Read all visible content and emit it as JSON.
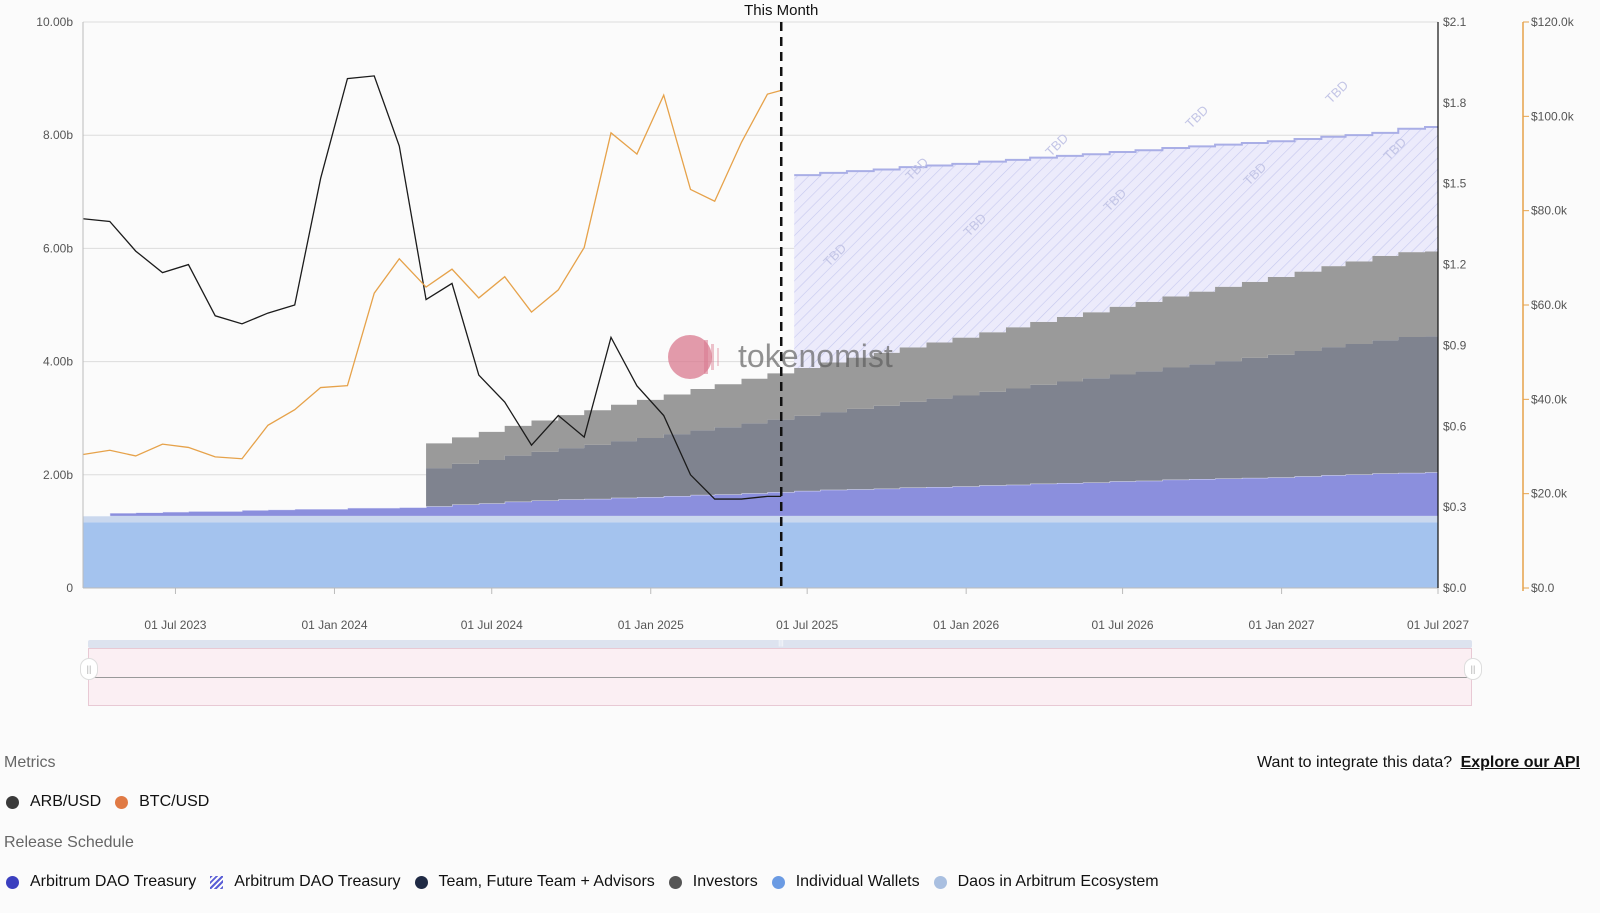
{
  "chart_data": {
    "type": "area",
    "annotation": "This Month",
    "today": "2025-06-01",
    "watermark": "tokenomist",
    "tbd_label": "TBD",
    "x_ticks": [
      "01 Jul 2023",
      "01 Jan 2024",
      "01 Jul 2024",
      "01 Jan 2025",
      "01 Jul 2025",
      "01 Jan 2026",
      "01 Jul 2026",
      "01 Jan 2027",
      "01 Jul 2027"
    ],
    "y_left": {
      "ticks": [
        "0",
        "2.00b",
        "4.00b",
        "6.00b",
        "8.00b",
        "10.00b"
      ],
      "ylim": [
        0,
        10000000000
      ]
    },
    "y_right_price": {
      "ticks": [
        "$0.0",
        "$0.3",
        "$0.6",
        "$0.9",
        "$1.2",
        "$1.5",
        "$1.8",
        "$2.1"
      ],
      "ylim": [
        0,
        2.1
      ]
    },
    "y_right_btc": {
      "ticks": [
        "$0.0",
        "$20.0k",
        "$40.0k",
        "$60.0k",
        "$80.0k",
        "$100.0k",
        "$120.0k"
      ],
      "ylim": [
        0,
        120000
      ]
    },
    "xlim": [
      "2023-03-16",
      "2027-07-01"
    ],
    "colors": {
      "arb": "#1b1b1b",
      "btc": "#e6a24a",
      "dao": "#8b8fdd",
      "dao_tbd": "#ecebfb",
      "dao_tbd_stroke": "#a9aee6",
      "team": "#7f838f",
      "investors": "#9a9a9a",
      "individual": "#a4c3ee",
      "daos_ecosystem": "#cad8ee",
      "today_line": "#111111"
    },
    "release_schedule": {
      "dates": [
        "2023-03-16",
        "2023-04-16",
        "2023-05-16",
        "2023-06-16",
        "2023-07-16",
        "2023-08-16",
        "2023-09-16",
        "2023-10-16",
        "2023-11-16",
        "2023-12-16",
        "2024-01-16",
        "2024-02-16",
        "2024-03-16",
        "2024-04-16",
        "2024-05-16",
        "2024-06-16",
        "2024-07-16",
        "2024-08-16",
        "2024-09-16",
        "2024-10-16",
        "2024-11-16",
        "2024-12-16",
        "2025-01-16",
        "2025-02-16",
        "2025-03-16",
        "2025-04-16",
        "2025-05-16",
        "2025-06-16",
        "2025-07-16",
        "2025-08-16",
        "2025-09-16",
        "2025-10-16",
        "2025-11-16",
        "2025-12-16",
        "2026-01-16",
        "2026-02-16",
        "2026-03-16",
        "2026-04-16",
        "2026-05-16",
        "2026-06-16",
        "2026-07-16",
        "2026-08-16",
        "2026-09-16",
        "2026-10-16",
        "2026-11-16",
        "2026-12-16",
        "2027-01-16",
        "2027-02-16",
        "2027-03-16",
        "2027-04-16",
        "2027-05-16",
        "2027-06-16",
        "2027-07-01"
      ],
      "series": [
        {
          "name": "Individual Wallets",
          "values": [
            1.162,
            1.162,
            1.162,
            1.162,
            1.162,
            1.162,
            1.162,
            1.162,
            1.162,
            1.162,
            1.162,
            1.162,
            1.162,
            1.162,
            1.162,
            1.162,
            1.162,
            1.162,
            1.162,
            1.162,
            1.162,
            1.162,
            1.162,
            1.162,
            1.162,
            1.162,
            1.162,
            1.162,
            1.162,
            1.162,
            1.162,
            1.162,
            1.162,
            1.162,
            1.162,
            1.162,
            1.162,
            1.162,
            1.162,
            1.162,
            1.162,
            1.162,
            1.162,
            1.162,
            1.162,
            1.162,
            1.162,
            1.162,
            1.162,
            1.162,
            1.162,
            1.162,
            1.162
          ]
        },
        {
          "name": "Daos in Arbitrum Ecosystem",
          "values": [
            0.113,
            0.113,
            0.113,
            0.113,
            0.113,
            0.113,
            0.113,
            0.113,
            0.113,
            0.113,
            0.113,
            0.113,
            0.113,
            0.113,
            0.113,
            0.113,
            0.113,
            0.113,
            0.113,
            0.113,
            0.113,
            0.113,
            0.113,
            0.113,
            0.113,
            0.113,
            0.113,
            0.113,
            0.113,
            0.113,
            0.113,
            0.113,
            0.113,
            0.113,
            0.113,
            0.113,
            0.113,
            0.113,
            0.113,
            0.113,
            0.113,
            0.113,
            0.113,
            0.113,
            0.113,
            0.113,
            0.113,
            0.113,
            0.113,
            0.113,
            0.113,
            0.113,
            0.113
          ]
        },
        {
          "name": "Arbitrum DAO Treasury",
          "values": [
            0,
            0.05,
            0.06,
            0.07,
            0.08,
            0.08,
            0.1,
            0.11,
            0.12,
            0.12,
            0.14,
            0.14,
            0.15,
            0.17,
            0.2,
            0.22,
            0.25,
            0.27,
            0.29,
            0.3,
            0.32,
            0.33,
            0.35,
            0.37,
            0.38,
            0.4,
            0.42,
            0.44,
            0.46,
            0.47,
            0.48,
            0.5,
            0.51,
            0.52,
            0.54,
            0.55,
            0.57,
            0.58,
            0.59,
            0.61,
            0.62,
            0.64,
            0.65,
            0.66,
            0.67,
            0.68,
            0.7,
            0.72,
            0.73,
            0.75,
            0.76,
            0.77,
            0.77
          ]
        },
        {
          "name": "Team, Future Team + Advisors",
          "values": [
            0,
            0,
            0,
            0,
            0,
            0,
            0,
            0,
            0,
            0,
            0,
            0,
            0,
            0.673,
            0.72,
            0.766,
            0.813,
            0.86,
            0.906,
            0.953,
            1.0,
            1.046,
            1.093,
            1.14,
            1.186,
            1.233,
            1.28,
            1.326,
            1.373,
            1.42,
            1.466,
            1.513,
            1.56,
            1.606,
            1.653,
            1.7,
            1.746,
            1.793,
            1.84,
            1.886,
            1.933,
            1.98,
            2.026,
            2.073,
            2.12,
            2.166,
            2.213,
            2.26,
            2.306,
            2.353,
            2.4,
            2.4,
            2.4
          ]
        },
        {
          "name": "Investors",
          "values": [
            0,
            0,
            0,
            0,
            0,
            0,
            0,
            0,
            0,
            0,
            0,
            0,
            0,
            0.438,
            0.467,
            0.497,
            0.526,
            0.555,
            0.584,
            0.613,
            0.643,
            0.672,
            0.701,
            0.73,
            0.759,
            0.789,
            0.818,
            0.847,
            0.876,
            0.905,
            0.935,
            0.964,
            0.993,
            1.022,
            1.051,
            1.081,
            1.11,
            1.139,
            1.168,
            1.197,
            1.227,
            1.256,
            1.285,
            1.314,
            1.343,
            1.373,
            1.402,
            1.431,
            1.46,
            1.489,
            1.5,
            1.5,
            1.5
          ]
        },
        {
          "name": "Arbitrum DAO Treasury (TBD)",
          "values": [
            0,
            0,
            0,
            0,
            0,
            0,
            0,
            0,
            0,
            0,
            0,
            0,
            0,
            0,
            0,
            0,
            0,
            0,
            0,
            0,
            0,
            0,
            0,
            0,
            0,
            0,
            0,
            3.407,
            3.351,
            3.295,
            3.239,
            3.183,
            3.127,
            3.071,
            3.015,
            2.959,
            2.903,
            2.847,
            2.791,
            2.735,
            2.679,
            2.623,
            2.567,
            2.511,
            2.455,
            2.399,
            2.343,
            2.287,
            2.231,
            2.175,
            2.18,
            2.2,
            2.2
          ]
        }
      ]
    },
    "series": [
      {
        "name": "ARB/USD",
        "axis": "price",
        "x": [
          "2023-03-16",
          "2023-04-16",
          "2023-05-16",
          "2023-06-16",
          "2023-07-16",
          "2023-08-16",
          "2023-09-16",
          "2023-10-16",
          "2023-11-16",
          "2023-12-16",
          "2024-01-16",
          "2024-02-16",
          "2024-03-16",
          "2024-04-16",
          "2024-05-16",
          "2024-06-16",
          "2024-07-16",
          "2024-08-16",
          "2024-09-16",
          "2024-10-16",
          "2024-11-16",
          "2024-12-16",
          "2025-01-16",
          "2025-02-16",
          "2025-03-16",
          "2025-04-16",
          "2025-05-16",
          "2025-06-01"
        ],
        "y": [
          1.37,
          1.36,
          1.25,
          1.17,
          1.2,
          1.01,
          0.98,
          1.02,
          1.05,
          1.52,
          1.89,
          1.9,
          1.64,
          1.07,
          1.13,
          0.79,
          0.69,
          0.53,
          0.64,
          0.56,
          0.93,
          0.75,
          0.64,
          0.42,
          0.33,
          0.33,
          0.34,
          0.34
        ]
      },
      {
        "name": "BTC/USD",
        "axis": "btc",
        "x": [
          "2023-03-16",
          "2023-04-16",
          "2023-05-16",
          "2023-06-16",
          "2023-07-16",
          "2023-08-16",
          "2023-09-16",
          "2023-10-16",
          "2023-11-16",
          "2023-12-16",
          "2024-01-16",
          "2024-02-16",
          "2024-03-16",
          "2024-04-16",
          "2024-05-16",
          "2024-06-16",
          "2024-07-16",
          "2024-08-16",
          "2024-09-16",
          "2024-10-16",
          "2024-11-16",
          "2024-12-16",
          "2025-01-16",
          "2025-02-16",
          "2025-03-16",
          "2025-04-16",
          "2025-05-16",
          "2025-06-01"
        ],
        "y": [
          28300,
          29200,
          28000,
          30500,
          29800,
          27800,
          27400,
          34500,
          37800,
          42500,
          42900,
          62500,
          69800,
          63800,
          67600,
          61500,
          66000,
          58500,
          63200,
          72200,
          96500,
          92000,
          104500,
          84500,
          82000,
          94500,
          104700,
          105500
        ]
      }
    ]
  },
  "metrics": {
    "title": "Metrics",
    "items": [
      {
        "label": "ARB/USD",
        "color": "#3a3a3a"
      },
      {
        "label": "BTC/USD",
        "color": "#e07a45"
      }
    ]
  },
  "release": {
    "title": "Release Schedule",
    "items": [
      {
        "label": "Arbitrum DAO Treasury",
        "color": "#3b3fbf",
        "style": "dot"
      },
      {
        "label": "Arbitrum DAO Treasury",
        "color": "#5b5fd6",
        "style": "hatch"
      },
      {
        "label": "Team, Future Team + Advisors",
        "color": "#1f2a44",
        "style": "dot"
      },
      {
        "label": "Investors",
        "color": "#555555",
        "style": "dot"
      },
      {
        "label": "Individual Wallets",
        "color": "#6b9be3",
        "style": "dot"
      },
      {
        "label": "Daos in Arbitrum Ecosystem",
        "color": "#a9bfe0",
        "style": "dot"
      }
    ]
  },
  "api": {
    "prompt": "Want to integrate this data?",
    "link": "Explore our API"
  }
}
